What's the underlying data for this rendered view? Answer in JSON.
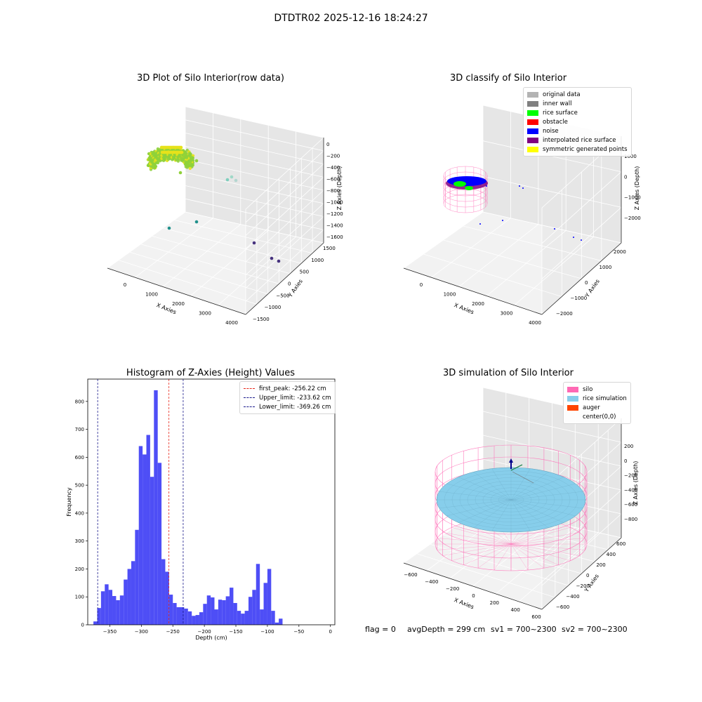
{
  "figure_title": "DTDTR02 2025-12-16 18:24:27",
  "footer": {
    "flag": "flag = 0",
    "avg_depth": "avgDepth = 299 cm",
    "sv1": "sv1 = 700~2300",
    "sv2": "sv2 = 700~2300"
  },
  "chart_data": [
    {
      "type": "scatter",
      "title": "3D Plot of Silo Interior(row data)",
      "xlabel": "X Axies",
      "ylabel": "Y Axies",
      "zlabel": "Z Axies (Depth)",
      "xticks": [
        "0",
        "1000",
        "2000",
        "3000",
        "4000"
      ],
      "yticks": [
        "1500",
        "1000",
        "500",
        "0",
        "−500",
        "−1000",
        "−1500"
      ],
      "zticks": [
        "0",
        "−200",
        "−400",
        "−600",
        "−800",
        "−1000",
        "−1200",
        "−1400",
        "−1600"
      ],
      "colors": {
        "dense_cluster": "#8fd13a",
        "top_cluster": "#e6e21a",
        "mid": "#5ec962",
        "deep": "#21918c",
        "deepest": "#46327e"
      }
    },
    {
      "type": "scatter",
      "title": "3D classify of Silo Interior",
      "xlabel": "X Axies",
      "ylabel": "Y Axies",
      "zlabel": "Z Axies (Depth)",
      "xticks": [
        "0",
        "1000",
        "2000",
        "3000",
        "4000"
      ],
      "yticks": [
        "2000",
        "1000",
        "0",
        "−1000",
        "−2000"
      ],
      "zticks": [
        "1000",
        "0",
        "−1000",
        "−2000"
      ],
      "legend": [
        {
          "label": "original data",
          "color": "#b3b3b3"
        },
        {
          "label": "inner wall",
          "color": "#808080"
        },
        {
          "label": "rice surface",
          "color": "#00ff00"
        },
        {
          "label": "obstacle",
          "color": "#ff0000"
        },
        {
          "label": "noise",
          "color": "#0000ff"
        },
        {
          "label": "interpolated rice surface",
          "color": "#800080"
        },
        {
          "label": "symmetric generated points",
          "color": "#ffff00"
        }
      ]
    },
    {
      "type": "bar",
      "title": "Histogram of Z-Axies (Height) Values",
      "xlabel": "Depth (cm)",
      "ylabel": "Frequency",
      "xlim": [
        -385,
        7
      ],
      "ylim": [
        0,
        880
      ],
      "xticks": [
        -350,
        -300,
        -250,
        -200,
        -150,
        -100,
        -50,
        0
      ],
      "xtick_labels": [
        "−350",
        "−300",
        "−250",
        "−200",
        "−150",
        "−100",
        "−50",
        "0"
      ],
      "yticks": [
        0,
        100,
        200,
        300,
        400,
        500,
        600,
        700,
        800
      ],
      "bin_start": -376,
      "bin_width": 6,
      "bar_color": "#4545f5",
      "values": [
        12,
        60,
        120,
        145,
        125,
        103,
        88,
        105,
        162,
        200,
        228,
        340,
        640,
        610,
        680,
        530,
        840,
        580,
        235,
        190,
        108,
        78,
        63,
        63,
        58,
        48,
        32,
        35,
        45,
        75,
        105,
        98,
        55,
        90,
        88,
        102,
        133,
        78,
        50,
        40,
        50,
        100,
        125,
        218,
        55,
        150,
        200,
        50,
        8,
        22
      ],
      "lines": [
        {
          "label": "first_peak: -256.22 cm",
          "x": -256.22,
          "color": "#e8291c"
        },
        {
          "label": "Upper_limit: -233.62 cm",
          "x": -233.62,
          "color": "#1a1a8c"
        },
        {
          "label": "Lower_limit: -369.26 cm",
          "x": -369.26,
          "color": "#1a1a8c"
        }
      ]
    },
    {
      "type": "scatter",
      "title": "3D simulation of Silo Interior",
      "xlabel": "X Axies",
      "ylabel": "Y Axies",
      "zlabel": "Z Axies (Depth)",
      "xticks": [
        "−600",
        "−400",
        "−200",
        "0",
        "200",
        "400",
        "600"
      ],
      "yticks": [
        "600",
        "400",
        "200",
        "0",
        "−200",
        "−400",
        "−600"
      ],
      "zticks": [
        "200",
        "0",
        "−200",
        "−400",
        "−600",
        "−800"
      ],
      "legend": [
        {
          "label": "silo",
          "color": "#ff69b4"
        },
        {
          "label": "rice simulation",
          "color": "#87ceeb"
        },
        {
          "label": "auger",
          "color": "#ff4500"
        },
        {
          "label": "center(0,0)",
          "color": ""
        }
      ]
    }
  ]
}
